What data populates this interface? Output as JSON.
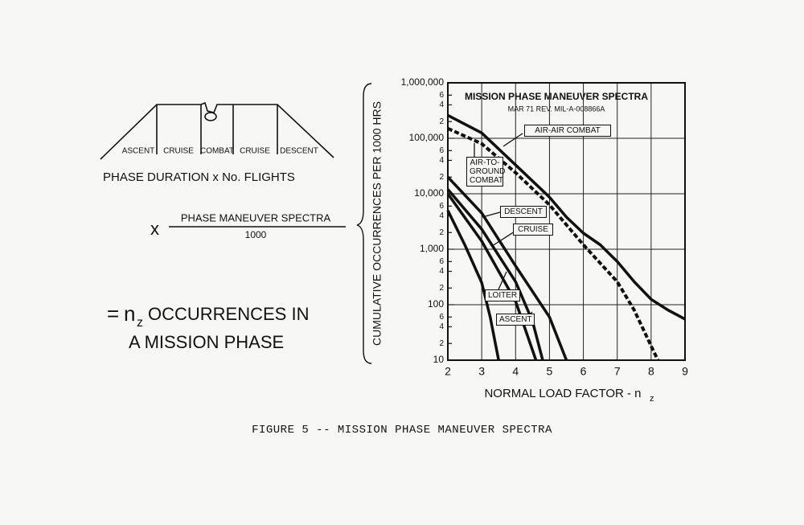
{
  "diagram": {
    "phases": [
      "ASCENT",
      "CRUISE",
      "COMBAT",
      "CRUISE",
      "DESCENT"
    ],
    "phase_duration": "PHASE DURATION x No. FLIGHTS",
    "times": "x",
    "numerator": "PHASE MANEUVER SPECTRA",
    "denominator": "1000",
    "equals": "=",
    "n": "n",
    "subscript": "z",
    "result_line1": "OCCURRENCES IN",
    "result_line2": "A MISSION PHASE"
  },
  "chart_data": {
    "type": "line",
    "title": "MISSION PHASE MANEUVER SPECTRA",
    "subtitle": "MAR 71 REV. MIL-A-008866A",
    "y_label": "CUMULATIVE OCCURRENCES PER 1000 HRS",
    "x_label": "NORMAL LOAD FACTOR - n",
    "x_label_subscript": "z",
    "log_y": true,
    "grid": true,
    "xlim": [
      2,
      9
    ],
    "xticks": [
      2,
      3,
      4,
      5,
      6,
      7,
      8,
      9
    ],
    "ylim": [
      10,
      1000000
    ],
    "yticks": [
      10,
      {
        "value": 20,
        "label": "2"
      },
      {
        "value": 40,
        "label": "4"
      },
      {
        "value": 60,
        "label": "6"
      },
      100,
      {
        "value": 200,
        "label": "2"
      },
      {
        "value": 400,
        "label": "4"
      },
      {
        "value": 600,
        "label": "6"
      },
      {
        "value": 1000,
        "label": "1,000"
      },
      {
        "value": 2000,
        "label": "2"
      },
      {
        "value": 4000,
        "label": "4"
      },
      {
        "value": 6000,
        "label": "6"
      },
      {
        "value": 10000,
        "label": "10,000"
      },
      {
        "value": 20000,
        "label": "2"
      },
      {
        "value": 40000,
        "label": "4"
      },
      {
        "value": 60000,
        "label": "6"
      },
      {
        "value": 100000,
        "label": "100,000"
      },
      {
        "value": 200000,
        "label": "2"
      },
      {
        "value": 400000,
        "label": "4"
      },
      {
        "value": 600000,
        "label": "6"
      },
      {
        "value": 1000000,
        "label": "1,000,000"
      }
    ],
    "series": [
      {
        "name": "AIR-AIR COMBAT",
        "color": "#111111",
        "dashed": false,
        "x": [
          2,
          3,
          4,
          5,
          5.5,
          6,
          6.5,
          7,
          7.5,
          8,
          8.5,
          9
        ],
        "values": [
          260000,
          125000,
          33000,
          8700,
          3800,
          1950,
          1200,
          600,
          260,
          125,
          80,
          55
        ]
      },
      {
        "name": "AIR-TO-GROUND COMBAT",
        "color": "#111111",
        "dashed": true,
        "x": [
          2,
          3,
          4,
          5,
          6,
          7,
          7.5,
          8,
          8.2
        ],
        "values": [
          150000,
          80000,
          24000,
          6300,
          1200,
          260,
          80,
          18,
          10
        ]
      },
      {
        "name": "DESCENT",
        "color": "#111111",
        "dashed": false,
        "x": [
          2,
          3,
          4,
          5,
          5.5
        ],
        "values": [
          20000,
          4500,
          500,
          60,
          10
        ]
      },
      {
        "name": "CRUISE",
        "color": "#111111",
        "dashed": false,
        "x": [
          2,
          3,
          4,
          4.5,
          4.8
        ],
        "values": [
          12000,
          2300,
          260,
          50,
          10
        ]
      },
      {
        "name": "LOITER",
        "color": "#111111",
        "dashed": false,
        "x": [
          2,
          3,
          4,
          4.6
        ],
        "values": [
          10000,
          1400,
          115,
          10
        ]
      },
      {
        "name": "ASCENT",
        "color": "#111111",
        "dashed": false,
        "x": [
          2,
          2.5,
          3,
          3.25,
          3.5
        ],
        "values": [
          5000,
          1200,
          250,
          60,
          10
        ]
      }
    ]
  },
  "caption": "FIGURE 5 -- MISSION PHASE MANEUVER SPECTRA"
}
